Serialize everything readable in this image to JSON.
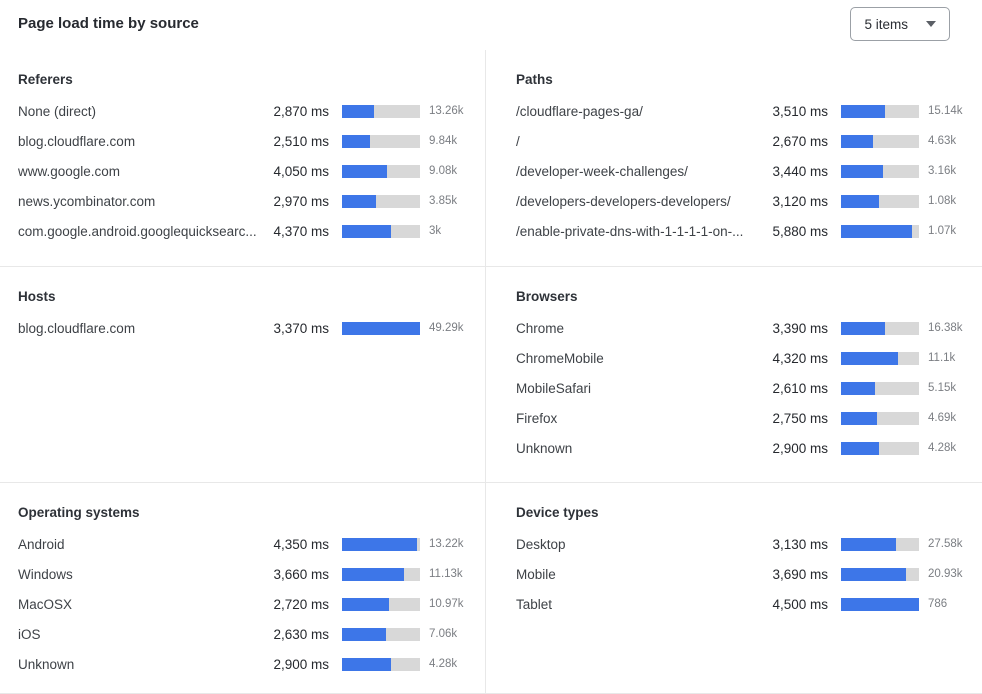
{
  "header": {
    "title": "Page load time by source",
    "items_dropdown": {
      "value": "5 items"
    }
  },
  "colors": {
    "bar_fill": "#3d76e8",
    "bar_track": "#d8d8d8"
  },
  "chart_data": {
    "type": "bar",
    "orientation": "horizontal",
    "unit": "ms",
    "note": "fill_pct is the blue bar length as percent of the gray track",
    "panels": [
      {
        "title": "Referers",
        "rows": [
          {
            "label": "None (direct)",
            "ms": "2,870 ms",
            "ms_value": 2870,
            "count": "13.26k",
            "fill_pct": 41
          },
          {
            "label": "blog.cloudflare.com",
            "ms": "2,510 ms",
            "ms_value": 2510,
            "count": "9.84k",
            "fill_pct": 36
          },
          {
            "label": "www.google.com",
            "ms": "4,050 ms",
            "ms_value": 4050,
            "count": "9.08k",
            "fill_pct": 58
          },
          {
            "label": "news.ycombinator.com",
            "ms": "2,970 ms",
            "ms_value": 2970,
            "count": "3.85k",
            "fill_pct": 43
          },
          {
            "label": "com.google.android.googlequicksearc...",
            "ms": "4,370 ms",
            "ms_value": 4370,
            "count": "3k",
            "fill_pct": 63
          }
        ]
      },
      {
        "title": "Paths",
        "rows": [
          {
            "label": "/cloudflare-pages-ga/",
            "ms": "3,510 ms",
            "ms_value": 3510,
            "count": "15.14k",
            "fill_pct": 57
          },
          {
            "label": "/",
            "ms": "2,670 ms",
            "ms_value": 2670,
            "count": "4.63k",
            "fill_pct": 41
          },
          {
            "label": "/developer-week-challenges/",
            "ms": "3,440 ms",
            "ms_value": 3440,
            "count": "3.16k",
            "fill_pct": 54
          },
          {
            "label": "/developers-developers-developers/",
            "ms": "3,120 ms",
            "ms_value": 3120,
            "count": "1.08k",
            "fill_pct": 49
          },
          {
            "label": "/enable-private-dns-with-1-1-1-1-on-...",
            "ms": "5,880 ms",
            "ms_value": 5880,
            "count": "1.07k",
            "fill_pct": 91
          }
        ]
      },
      {
        "title": "Hosts",
        "rows": [
          {
            "label": "blog.cloudflare.com",
            "ms": "3,370 ms",
            "ms_value": 3370,
            "count": "49.29k",
            "fill_pct": 100
          }
        ]
      },
      {
        "title": "Browsers",
        "rows": [
          {
            "label": "Chrome",
            "ms": "3,390 ms",
            "ms_value": 3390,
            "count": "16.38k",
            "fill_pct": 57
          },
          {
            "label": "ChromeMobile",
            "ms": "4,320 ms",
            "ms_value": 4320,
            "count": "11.1k",
            "fill_pct": 73
          },
          {
            "label": "MobileSafari",
            "ms": "2,610 ms",
            "ms_value": 2610,
            "count": "5.15k",
            "fill_pct": 44
          },
          {
            "label": "Firefox",
            "ms": "2,750 ms",
            "ms_value": 2750,
            "count": "4.69k",
            "fill_pct": 46
          },
          {
            "label": "Unknown",
            "ms": "2,900 ms",
            "ms_value": 2900,
            "count": "4.28k",
            "fill_pct": 49
          }
        ]
      },
      {
        "title": "Operating systems",
        "rows": [
          {
            "label": "Android",
            "ms": "4,350 ms",
            "ms_value": 4350,
            "count": "13.22k",
            "fill_pct": 96
          },
          {
            "label": "Windows",
            "ms": "3,660 ms",
            "ms_value": 3660,
            "count": "11.13k",
            "fill_pct": 80
          },
          {
            "label": "MacOSX",
            "ms": "2,720 ms",
            "ms_value": 2720,
            "count": "10.97k",
            "fill_pct": 60
          },
          {
            "label": "iOS",
            "ms": "2,630 ms",
            "ms_value": 2630,
            "count": "7.06k",
            "fill_pct": 56
          },
          {
            "label": "Unknown",
            "ms": "2,900 ms",
            "ms_value": 2900,
            "count": "4.28k",
            "fill_pct": 63
          }
        ]
      },
      {
        "title": "Device types",
        "rows": [
          {
            "label": "Desktop",
            "ms": "3,130 ms",
            "ms_value": 3130,
            "count": "27.58k",
            "fill_pct": 71
          },
          {
            "label": "Mobile",
            "ms": "3,690 ms",
            "ms_value": 3690,
            "count": "20.93k",
            "fill_pct": 83
          },
          {
            "label": "Tablet",
            "ms": "4,500 ms",
            "ms_value": 4500,
            "count": "786",
            "fill_pct": 100
          }
        ]
      }
    ]
  }
}
